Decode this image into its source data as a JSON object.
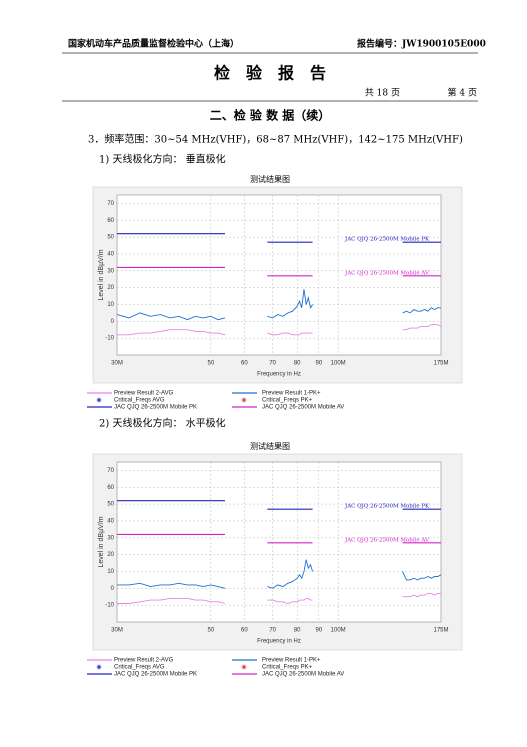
{
  "header": {
    "org": "国家机动车产品质量监督检验中心（上海）",
    "report_no": "报告编号：JW1900105E000"
  },
  "title": "检　验　报　告",
  "pages": {
    "total": "共 18 页",
    "current": "第 4 页"
  },
  "section": "二、检 验 数 据（续）",
  "item": "3．频率范围：30~54 MHz(VHF)，68~87 MHz(VHF)，142~175 MHz(VHF)",
  "subsections": [
    "1) 天线极化方向： 垂直极化",
    "2) 天线极化方向： 水平极化"
  ],
  "chart_data": [
    {
      "type": "line",
      "title": "测试结果图",
      "xlabel": "Frequency in Hz",
      "ylabel": "Level in dBµV/m",
      "xscale": "log",
      "xlim": [
        30,
        175
      ],
      "ylim": [
        -20,
        75
      ],
      "xticks": [
        {
          "value": 30,
          "label": "30M"
        },
        50,
        60,
        70,
        80,
        90,
        {
          "value": 100,
          "label": "100M"
        },
        {
          "value": 175,
          "label": "175M"
        }
      ],
      "yticks": [
        -10,
        0,
        10,
        20,
        30,
        40,
        50,
        60,
        70
      ],
      "grid": true,
      "x": [
        30,
        32,
        34,
        36,
        38,
        40,
        42,
        44,
        46,
        48,
        50,
        52,
        54,
        60,
        68,
        70,
        72,
        74,
        76,
        78,
        80,
        81,
        82,
        83,
        84,
        85,
        86,
        87,
        110,
        142,
        145,
        148,
        151,
        154,
        157,
        160,
        163,
        166,
        169,
        172,
        175
      ],
      "series": [
        {
          "name": "Preview Result 2-AVG",
          "color": "#e882e8",
          "values": [
            -8,
            -8,
            -7,
            -7,
            -6,
            -5,
            -5,
            -5,
            -6,
            -6,
            -7,
            -7,
            -8,
            null,
            -7,
            -8,
            -8,
            -7,
            -7,
            -8,
            -8,
            -8,
            -7,
            -7,
            -7,
            -7,
            -7,
            -7,
            null,
            -5,
            -5,
            -4,
            -4,
            -4,
            -3,
            -3,
            -3,
            -2,
            -2,
            -2,
            -3
          ]
        },
        {
          "name": "Preview Result 1-PK+",
          "color": "#1f6fd6",
          "values": [
            4,
            2,
            5,
            3,
            4,
            2,
            3,
            1,
            3,
            2,
            3,
            1,
            2,
            null,
            3,
            2,
            4,
            3,
            5,
            6,
            9,
            12,
            8,
            19,
            10,
            14,
            8,
            10,
            null,
            5,
            6,
            5,
            7,
            6,
            6,
            7,
            6,
            8,
            7,
            8,
            8
          ]
        },
        {
          "name": "Critical_Freqs AVG",
          "color": "#1a1acc",
          "marker": "star",
          "x": [],
          "values": []
        },
        {
          "name": "Critical_Freqs PK+",
          "color": "#e02020",
          "marker": "star",
          "x": [],
          "values": []
        },
        {
          "name": "JAC QJQ 26-2500M Mobile PK",
          "label": "JAC QJQ 26-2500M Mobile PK",
          "color": "#2424c0",
          "x": [
            30,
            54,
            60,
            68,
            87,
            110,
            142,
            175
          ],
          "values": [
            52,
            52,
            null,
            47,
            47,
            null,
            47,
            47
          ]
        },
        {
          "name": "JAC QJQ 26-2500M Mobile AV",
          "label": "JAC QJQ 26-2500M Mobile AV",
          "color": "#d424c8",
          "x": [
            30,
            54,
            60,
            68,
            87,
            110,
            142,
            175
          ],
          "values": [
            32,
            32,
            null,
            27,
            27,
            null,
            27,
            27
          ]
        }
      ]
    },
    {
      "type": "line",
      "title": "测试结果图",
      "xlabel": "Frequency in Hz",
      "ylabel": "Level in dBµV/m",
      "xscale": "log",
      "xlim": [
        30,
        175
      ],
      "ylim": [
        -20,
        75
      ],
      "xticks": [
        {
          "value": 30,
          "label": "30M"
        },
        50,
        60,
        70,
        80,
        90,
        {
          "value": 100,
          "label": "100M"
        },
        {
          "value": 175,
          "label": "175M"
        }
      ],
      "yticks": [
        -10,
        0,
        10,
        20,
        30,
        40,
        50,
        60,
        70
      ],
      "grid": true,
      "x": [
        30,
        32,
        34,
        36,
        38,
        40,
        42,
        44,
        46,
        48,
        50,
        52,
        54,
        60,
        68,
        70,
        72,
        74,
        76,
        78,
        80,
        81,
        82,
        83,
        84,
        85,
        86,
        87,
        110,
        142,
        145,
        148,
        151,
        154,
        157,
        160,
        163,
        166,
        169,
        172,
        175
      ],
      "series": [
        {
          "name": "Preview Result 2-AVG",
          "color": "#e882e8",
          "values": [
            -9,
            -9,
            -8,
            -7,
            -7,
            -6,
            -6,
            -6,
            -7,
            -7,
            -8,
            -8,
            -9,
            null,
            -7,
            -7,
            -8,
            -8,
            -9,
            -8,
            -8,
            -7,
            -7,
            -7,
            -6,
            -6,
            -7,
            -7,
            null,
            -5,
            -5,
            -5,
            -4,
            -5,
            -4,
            -4,
            -3,
            -3,
            -4,
            -3,
            -3
          ]
        },
        {
          "name": "Preview Result 1-PK+",
          "color": "#1f6fd6",
          "values": [
            2,
            2,
            3,
            1,
            2,
            2,
            3,
            2,
            2,
            1,
            2,
            1,
            0,
            null,
            1,
            0,
            2,
            1,
            3,
            4,
            6,
            8,
            6,
            10,
            17,
            12,
            14,
            10,
            null,
            10,
            5,
            5,
            6,
            5,
            6,
            6,
            7,
            6,
            7,
            7,
            8
          ]
        },
        {
          "name": "Critical_Freqs AVG",
          "color": "#1a1acc",
          "marker": "star",
          "x": [],
          "values": []
        },
        {
          "name": "Critical_Freqs PK+",
          "color": "#e02020",
          "marker": "star",
          "x": [],
          "values": []
        },
        {
          "name": "JAC QJQ 26-2500M Mobile PK",
          "label": "JAC QJQ 26-2500M Mobile PK",
          "color": "#2424c0",
          "x": [
            30,
            54,
            60,
            68,
            87,
            110,
            142,
            175
          ],
          "values": [
            52,
            52,
            null,
            47,
            47,
            null,
            47,
            47
          ]
        },
        {
          "name": "JAC QJQ 26-2500M Mobile AV",
          "label": "JAC QJQ 26-2500M Mobile AV",
          "color": "#d424c8",
          "x": [
            30,
            54,
            60,
            68,
            87,
            110,
            142,
            175
          ],
          "values": [
            32,
            32,
            null,
            27,
            27,
            null,
            27,
            27
          ]
        }
      ]
    }
  ]
}
